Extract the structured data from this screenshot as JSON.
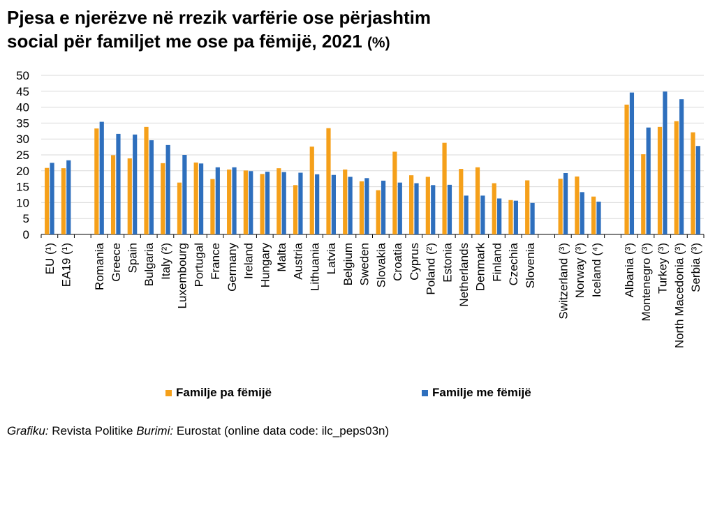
{
  "title": {
    "line1": "Pjesa e njerëzve në rrezik varfërie ose përjashtim",
    "line2": "social për familjet me ose pa fëmijë, 2021",
    "unit": "(%)"
  },
  "legend": {
    "without_children": "Familje pa fëmijë",
    "with_children": "Familje me fëmijë"
  },
  "source": {
    "graph_label": "Grafiku:",
    "graph_value": " Revista Politike ",
    "source_label": "Burimi:",
    "source_value": " Eurostat (online data code: ilc_peps03n)"
  },
  "colors": {
    "without_children": "#f5a01a",
    "with_children": "#2e6fbd",
    "grid": "#d9d9d9",
    "axis": "#000000"
  },
  "chart_data": {
    "type": "bar",
    "ylim": [
      0,
      50
    ],
    "yticks": [
      0,
      5,
      10,
      15,
      20,
      25,
      30,
      35,
      40,
      45,
      50
    ],
    "grid": true,
    "legend_position": "bottom",
    "categories": [
      "EU (¹)",
      "EA19 (¹)",
      "",
      "Romania",
      "Greece",
      "Spain",
      "Bulgaria",
      "Italy (²)",
      "Luxembourg",
      "Portugal",
      "France",
      "Germany",
      "Ireland",
      "Hungary",
      "Malta",
      "Austria",
      "Lithuania",
      "Latvia",
      "Belgium",
      "Sweden",
      "Slovakia",
      "Croatia",
      "Cyprus",
      "Poland (²)",
      "Estonia",
      "Netherlands",
      "Denmark",
      "Finland",
      "Czechia",
      "Slovenia",
      "",
      "Switzerland (³)",
      "Norway (³)",
      "Iceland (⁴)",
      "",
      "Albania (³)",
      "Montenegro (³)",
      "Turkey (³)",
      "North Macedonia (³)",
      "Serbia (³)"
    ],
    "series": [
      {
        "name": "Familje pa fëmijë",
        "values": [
          20.9,
          20.8,
          null,
          33.3,
          24.9,
          23.9,
          33.8,
          22.4,
          16.3,
          22.6,
          17.4,
          20.4,
          20.1,
          19.0,
          20.8,
          15.5,
          27.6,
          33.4,
          20.4,
          16.7,
          13.9,
          26.0,
          18.6,
          18.1,
          28.8,
          20.6,
          21.1,
          16.1,
          10.8,
          17.0,
          null,
          17.5,
          18.2,
          11.9,
          null,
          40.8,
          25.2,
          33.8,
          35.6,
          32.1
        ]
      },
      {
        "name": "Familje me fëmijë",
        "values": [
          22.5,
          23.3,
          null,
          35.4,
          31.6,
          31.4,
          29.6,
          28.1,
          25.0,
          22.3,
          21.1,
          21.1,
          19.9,
          19.7,
          19.6,
          19.4,
          18.9,
          18.7,
          18.1,
          17.7,
          16.9,
          16.3,
          16.1,
          15.5,
          15.6,
          12.2,
          12.2,
          11.3,
          10.6,
          9.9,
          null,
          19.3,
          13.3,
          10.3,
          null,
          44.6,
          33.6,
          44.9,
          42.5,
          27.8
        ]
      }
    ]
  }
}
